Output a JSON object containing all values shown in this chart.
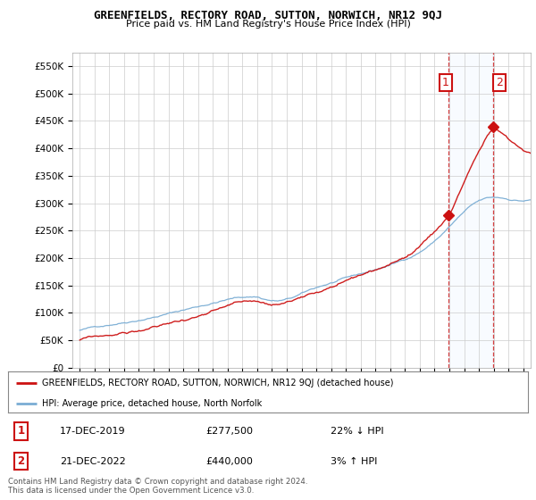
{
  "title": "GREENFIELDS, RECTORY ROAD, SUTTON, NORWICH, NR12 9QJ",
  "subtitle": "Price paid vs. HM Land Registry's House Price Index (HPI)",
  "ylabel_ticks": [
    "£0",
    "£50K",
    "£100K",
    "£150K",
    "£200K",
    "£250K",
    "£300K",
    "£350K",
    "£400K",
    "£450K",
    "£500K",
    "£550K"
  ],
  "ytick_values": [
    0,
    50000,
    100000,
    150000,
    200000,
    250000,
    300000,
    350000,
    400000,
    450000,
    500000,
    550000
  ],
  "ylim": [
    0,
    575000
  ],
  "hpi_color": "#7aadd4",
  "price_color": "#cc1111",
  "annotation_color": "#cc1111",
  "sale1_price": 277500,
  "sale1_x": 2019.96,
  "sale2_price": 440000,
  "sale2_x": 2022.96,
  "legend_line1": "GREENFIELDS, RECTORY ROAD, SUTTON, NORWICH, NR12 9QJ (detached house)",
  "legend_line2": "HPI: Average price, detached house, North Norfolk",
  "note1_date": "17-DEC-2019",
  "note1_price": "£277,500",
  "note1_hpi": "22% ↓ HPI",
  "note2_date": "21-DEC-2022",
  "note2_price": "£440,000",
  "note2_hpi": "3% ↑ HPI",
  "footer": "Contains HM Land Registry data © Crown copyright and database right 2024.\nThis data is licensed under the Open Government Licence v3.0.",
  "background_color": "#ffffff",
  "grid_color": "#cccccc",
  "shade_color": "#ddeeff"
}
